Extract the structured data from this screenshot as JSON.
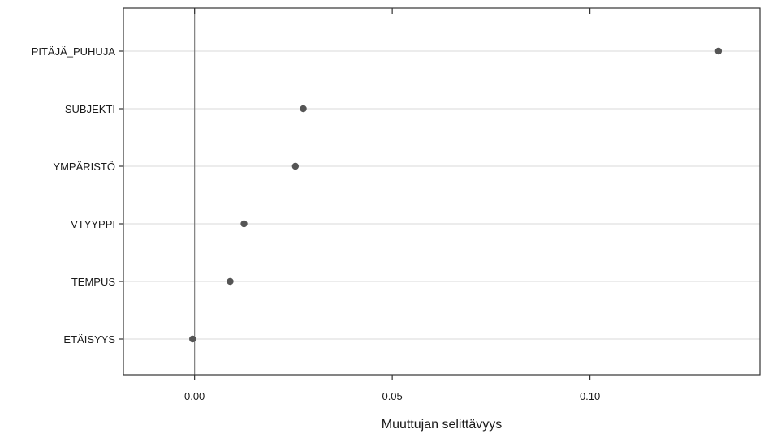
{
  "chart_data": {
    "type": "scatter",
    "title": "",
    "xlabel": "Muuttujan selittävyys",
    "ylabel": "",
    "xlim": [
      -0.018,
      0.143
    ],
    "x_ticks": [
      0.0,
      0.05,
      0.1
    ],
    "x_tick_labels": [
      "0.00",
      "0.05",
      "0.10"
    ],
    "reference_line_x": 0.0,
    "grid": {
      "horizontal": true,
      "vertical": false
    },
    "categories": [
      "PITÄJÄ_PUHUJA",
      "SUBJEKTI",
      "YMPÄRISTÖ",
      "VTYYPPI",
      "TEMPUS",
      "ETÄISYYS"
    ],
    "values": [
      0.1325,
      0.0275,
      0.0255,
      0.0125,
      0.009,
      -0.0005
    ],
    "colors": {
      "point": "#555555",
      "gridline": "#d9d9d9",
      "reference_line": "#7f7f7f",
      "frame": "#333333",
      "text": "#1a1a1a"
    }
  }
}
